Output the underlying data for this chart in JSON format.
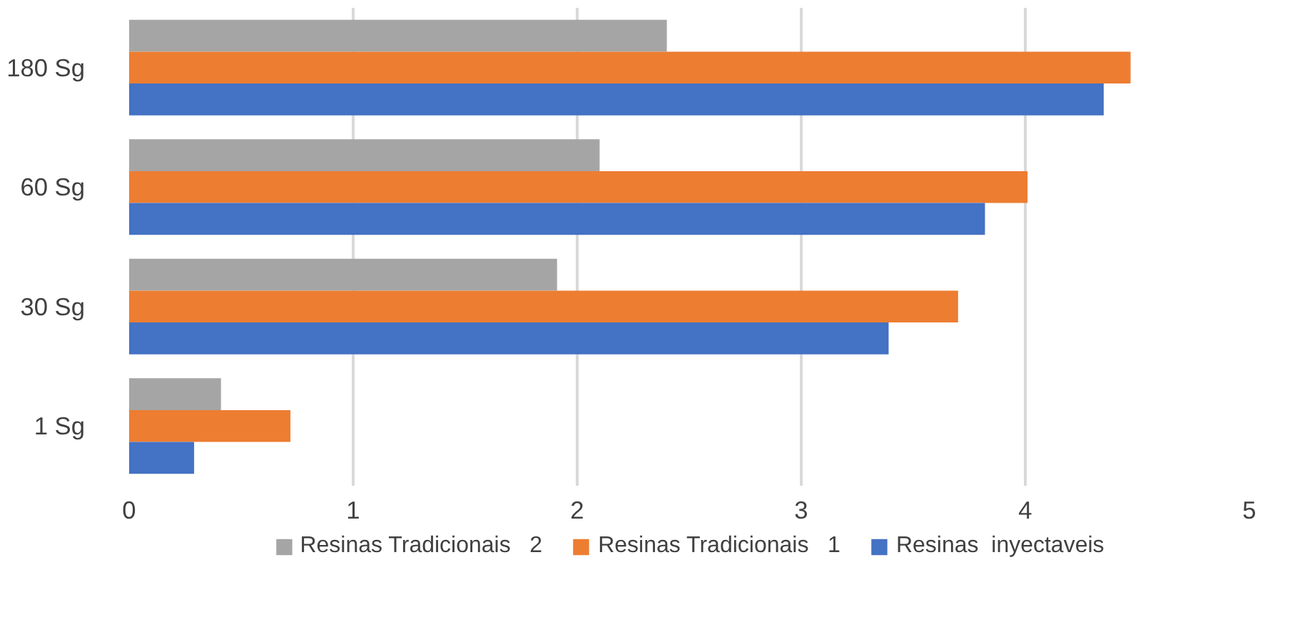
{
  "chart_data": {
    "type": "bar",
    "orientation": "horizontal",
    "categories": [
      "180 Sg",
      "60 Sg",
      "30 Sg",
      "1 Sg"
    ],
    "series": [
      {
        "name": "Resinas Tradicionais   2",
        "color": "#a5a5a5",
        "values": [
          2.4,
          2.1,
          1.91,
          0.41
        ]
      },
      {
        "name": "Resinas Tradicionais   1",
        "color": "#ed7d31",
        "values": [
          4.47,
          4.01,
          3.7,
          0.72
        ]
      },
      {
        "name": "Resinas  inyectaveis",
        "color": "#4472c4",
        "values": [
          4.35,
          3.82,
          3.39,
          0.29
        ]
      }
    ],
    "xlim": [
      0,
      5
    ],
    "xticks": [
      0,
      1,
      2,
      3,
      4,
      5
    ],
    "grid": "x",
    "legend": "bottom"
  }
}
